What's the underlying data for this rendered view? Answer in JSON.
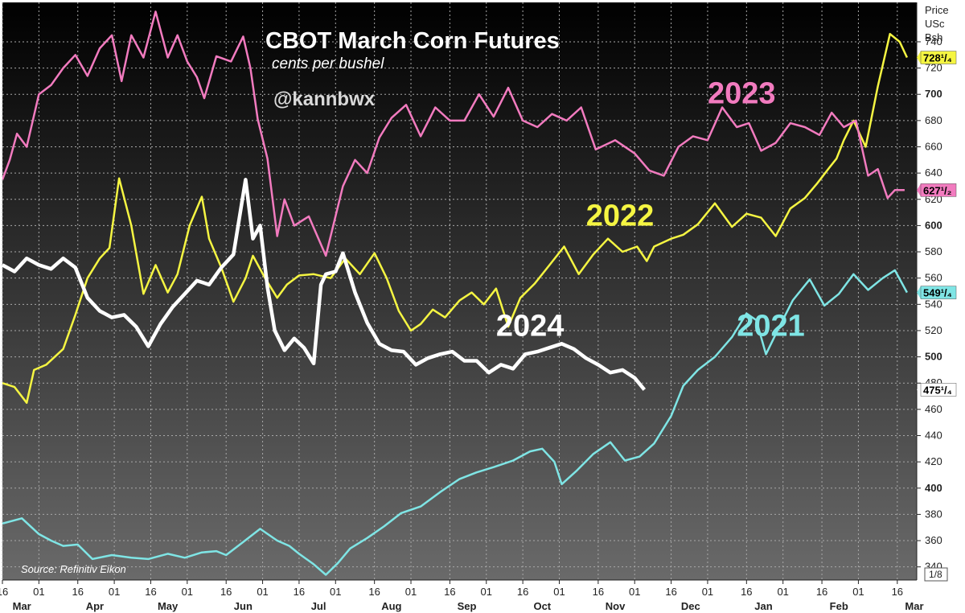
{
  "chart_data": {
    "type": "line",
    "title": "CBOT March Corn Futures",
    "subtitle": "cents per bushel",
    "handle": "@kannbwx",
    "source": "Source: Refinitiv Eikon",
    "y_unit": [
      "Price",
      "USc",
      "Bsh"
    ],
    "zoom_label": "1/8",
    "ylim": [
      330,
      770
    ],
    "y_ticks": [
      340,
      360,
      380,
      400,
      420,
      440,
      460,
      480,
      500,
      520,
      540,
      560,
      580,
      600,
      620,
      640,
      660,
      680,
      700,
      720,
      740
    ],
    "y_bold_ticks": [
      400,
      500,
      600,
      700
    ],
    "xlim": [
      0,
      376
    ],
    "x_tick_positions": [
      0,
      15,
      31,
      46,
      61,
      76,
      92,
      107,
      122,
      137,
      153,
      168,
      184,
      199,
      214,
      229,
      245,
      260,
      275,
      290,
      306,
      321,
      337,
      352,
      368
    ],
    "x_tick_labels": [
      "16",
      "01",
      "16",
      "01",
      "16",
      "01",
      "16",
      "01",
      "16",
      "01",
      "16",
      "01",
      "16",
      "01",
      "16",
      "01",
      "16",
      "01",
      "16",
      "01",
      "16",
      "01",
      "16",
      "01",
      "16"
    ],
    "month_positions": [
      8,
      38,
      68,
      99,
      130,
      160,
      191,
      222,
      252,
      283,
      313,
      344,
      375
    ],
    "month_labels": [
      "Mar",
      "Apr",
      "May",
      "Jun",
      "Jul",
      "Aug",
      "Sep",
      "Oct",
      "Nov",
      "Dec",
      "Jan",
      "Feb",
      "Mar"
    ],
    "grid": true,
    "series": [
      {
        "name": "2021",
        "color": "#7fe5e5",
        "last_label": "549¹/₄",
        "x": [
          0,
          8,
          15,
          20,
          25,
          31,
          37,
          45,
          53,
          60,
          68,
          75,
          82,
          88,
          92,
          99,
          106,
          113,
          118,
          122,
          128,
          133,
          138,
          143,
          150,
          157,
          164,
          172,
          180,
          188,
          195,
          202,
          210,
          217,
          222,
          227,
          230,
          236,
          243,
          250,
          256,
          262,
          268,
          275,
          280,
          286,
          293,
          300,
          306,
          310,
          314,
          319,
          325,
          332,
          338,
          344,
          350,
          356,
          362,
          367,
          372
        ],
        "y": [
          373,
          377,
          365,
          360,
          356,
          357,
          346,
          349,
          347,
          346,
          350,
          347,
          351,
          352,
          349,
          359,
          369,
          360,
          356,
          350,
          342,
          334,
          343,
          354,
          362,
          371,
          381,
          386,
          397,
          407,
          412,
          416,
          421,
          428,
          430,
          420,
          403,
          413,
          426,
          435,
          421,
          424,
          434,
          455,
          478,
          490,
          500,
          515,
          533,
          528,
          502,
          521,
          543,
          559,
          539,
          548,
          563,
          551,
          560,
          566,
          549
        ]
      },
      {
        "name": "2022",
        "color": "#f5f542",
        "last_label": "728¹/₄",
        "x": [
          0,
          5,
          10,
          13,
          18,
          25,
          30,
          35,
          40,
          44,
          48,
          53,
          58,
          63,
          68,
          72,
          77,
          82,
          85,
          90,
          95,
          100,
          103,
          108,
          113,
          117,
          122,
          128,
          135,
          141,
          147,
          153,
          158,
          163,
          168,
          172,
          177,
          182,
          188,
          193,
          198,
          203,
          208,
          213,
          219,
          225,
          231,
          237,
          243,
          249,
          255,
          261,
          265,
          268,
          275,
          280,
          286,
          293,
          300,
          306,
          312,
          318,
          324,
          330,
          335,
          340,
          343,
          346,
          350,
          355,
          360,
          365,
          369,
          372
        ],
        "y": [
          480,
          477,
          465,
          490,
          494,
          506,
          532,
          560,
          575,
          583,
          636,
          600,
          548,
          570,
          549,
          563,
          600,
          622,
          590,
          568,
          542,
          560,
          577,
          560,
          545,
          555,
          562,
          563,
          560,
          575,
          563,
          579,
          560,
          535,
          520,
          525,
          536,
          530,
          543,
          549,
          540,
          552,
          523,
          545,
          556,
          570,
          584,
          563,
          578,
          590,
          580,
          584,
          573,
          584,
          590,
          593,
          601,
          617,
          599,
          609,
          606,
          592,
          613,
          621,
          632,
          644,
          651,
          665,
          680,
          660,
          706,
          746,
          740,
          728
        ]
      },
      {
        "name": "2023",
        "color": "#f27bbf",
        "last_label": "627¹/₂",
        "x": [
          0,
          3,
          6,
          10,
          15,
          20,
          25,
          30,
          35,
          40,
          45,
          49,
          53,
          58,
          63,
          68,
          72,
          76,
          80,
          83,
          88,
          94,
          99,
          102,
          105,
          109,
          113,
          116,
          120,
          126,
          133,
          140,
          145,
          150,
          155,
          160,
          166,
          172,
          178,
          184,
          190,
          196,
          202,
          208,
          214,
          220,
          226,
          232,
          238,
          244,
          252,
          260,
          266,
          272,
          278,
          284,
          290,
          296,
          302,
          307,
          312,
          318,
          324,
          330,
          336,
          341,
          346,
          351,
          356,
          360,
          364,
          367,
          371
        ],
        "y": [
          635,
          650,
          670,
          660,
          700,
          707,
          720,
          730,
          714,
          735,
          745,
          710,
          745,
          728,
          763,
          728,
          745,
          725,
          713,
          697,
          729,
          725,
          744,
          720,
          681,
          651,
          592,
          620,
          600,
          607,
          577,
          630,
          650,
          640,
          667,
          682,
          692,
          668,
          690,
          680,
          680,
          700,
          683,
          705,
          680,
          675,
          685,
          680,
          690,
          658,
          665,
          655,
          642,
          638,
          660,
          668,
          665,
          690,
          675,
          678,
          657,
          663,
          678,
          675,
          669,
          686,
          675,
          680,
          638,
          643,
          621,
          627,
          627
        ]
      },
      {
        "name": "2024",
        "color": "#ffffff",
        "last_label": "475¹/₄",
        "x": [
          0,
          5,
          10,
          15,
          20,
          25,
          30,
          35,
          40,
          45,
          50,
          55,
          60,
          65,
          70,
          75,
          80,
          85,
          90,
          95,
          100,
          103,
          106,
          109,
          112,
          116,
          120,
          124,
          128,
          131,
          133,
          137,
          140,
          145,
          150,
          155,
          160,
          165,
          170,
          175,
          180,
          185,
          190,
          195,
          200,
          205,
          210,
          215,
          220,
          225,
          230,
          235,
          240,
          245,
          250,
          255,
          260,
          264
        ],
        "y": [
          570,
          565,
          575,
          570,
          567,
          575,
          568,
          545,
          535,
          530,
          532,
          523,
          508,
          525,
          538,
          548,
          558,
          555,
          568,
          578,
          635,
          590,
          600,
          553,
          520,
          505,
          514,
          507,
          495,
          555,
          563,
          565,
          579,
          549,
          526,
          510,
          505,
          504,
          494,
          499,
          502,
          504,
          497,
          497,
          488,
          494,
          491,
          502,
          504,
          507,
          510,
          506,
          499,
          494,
          488,
          490,
          484,
          475
        ]
      }
    ],
    "series_labels": [
      {
        "text": "2023",
        "color": "#f27bbf",
        "x": 290,
        "y": 693
      },
      {
        "text": "2022",
        "color": "#f5f542",
        "x": 240,
        "y": 600
      },
      {
        "text": "2024",
        "color": "#ffffff",
        "x": 203,
        "y": 516
      },
      {
        "text": "2021",
        "color": "#7fe5e5",
        "x": 302,
        "y": 516
      }
    ]
  }
}
